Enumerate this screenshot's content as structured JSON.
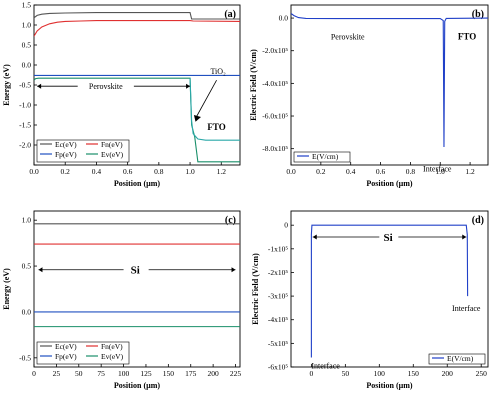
{
  "chart_data": [
    {
      "panel": "(a)",
      "type": "line",
      "xlabel": "Position (µm)",
      "ylabel": "Energy (eV)",
      "xlim": [
        0,
        1.32
      ],
      "ylim": [
        -2.5,
        1.5
      ],
      "xticks": [
        0.0,
        0.2,
        0.4,
        0.6,
        0.8,
        1.0,
        1.2
      ],
      "xtick_labels": [
        "0.0",
        "0.2",
        "0.4",
        "0.6",
        "0.8",
        "1.0",
        "1.2"
      ],
      "yticks": [
        -2.5,
        -2.0,
        -1.5,
        -1.0,
        -0.5,
        0.0,
        0.5,
        1.0,
        1.5
      ],
      "ytick_labels": [
        "",
        "-2.0",
        "-1.5",
        "-1.0",
        "-0.5",
        "0.0",
        "0.5",
        "1.0",
        "1.5"
      ],
      "legend": "bottom-left",
      "series": [
        {
          "name": "Ec(eV)",
          "color": "#555555",
          "x": [
            0,
            0.02,
            0.05,
            0.1,
            0.2,
            0.4,
            0.6,
            0.8,
            1.0,
            1.01,
            1.03,
            1.32
          ],
          "y": [
            1.18,
            1.24,
            1.27,
            1.29,
            1.3,
            1.31,
            1.31,
            1.31,
            1.31,
            1.15,
            1.15,
            1.15
          ]
        },
        {
          "name": "Fn(eV)",
          "color": "#e03030",
          "x": [
            0,
            0.02,
            0.05,
            0.1,
            0.15,
            0.2,
            0.3,
            0.4,
            0.6,
            0.8,
            1.0,
            1.02,
            1.32
          ],
          "y": [
            0.72,
            0.85,
            0.95,
            1.03,
            1.07,
            1.09,
            1.1,
            1.11,
            1.11,
            1.11,
            1.11,
            1.1,
            1.09
          ]
        },
        {
          "name": "Fp(eV)",
          "color": "#2050c0",
          "x": [
            0,
            1.32
          ],
          "y": [
            -0.26,
            -0.26
          ]
        },
        {
          "name": "Ev(eV)",
          "color": "#1a8f6a",
          "x": [
            0,
            0.01,
            0.03,
            0.1,
            0.3,
            0.6,
            1.0,
            1.01,
            1.03,
            1.05,
            1.32
          ],
          "y": [
            -0.38,
            -0.34,
            -0.33,
            -0.33,
            -0.33,
            -0.33,
            -0.33,
            -1.5,
            -1.8,
            -2.42,
            -2.42
          ]
        },
        {
          "name": "",
          "color": "#2aa8a8",
          "x": [
            1.0,
            1.01,
            1.02,
            1.05,
            1.1,
            1.2,
            1.32
          ],
          "y": [
            -0.33,
            -1.4,
            -1.72,
            -1.85,
            -1.88,
            -1.88,
            -1.88
          ]
        }
      ],
      "annotations": [
        {
          "text": "Perovskite",
          "x": 0.46,
          "y": -0.53
        },
        {
          "text": "TiO₂",
          "x": 1.18,
          "y": -0.22
        },
        {
          "text": "FTO",
          "x": 1.17,
          "y": -1.62
        }
      ]
    },
    {
      "panel": "(b)",
      "type": "line",
      "xlabel": "Position (µm)",
      "ylabel": "Electric Field (V/cm)",
      "xlim": [
        0,
        1.32
      ],
      "ylim": [
        -900000,
        80000
      ],
      "xticks": [
        0.0,
        0.2,
        0.4,
        0.6,
        0.8,
        1.0,
        1.2
      ],
      "xtick_labels": [
        "0.0",
        "0.2",
        "0.4",
        "0.6",
        "0.8",
        "1.0",
        "1.2"
      ],
      "yticks": [
        0,
        -200000,
        -400000,
        -600000,
        -800000
      ],
      "ytick_labels": [
        "0.0",
        "-2.0x10⁵",
        "-4.0x10⁵",
        "-6.0x10⁵",
        "-8.0x10⁵"
      ],
      "legend": "bottom-left",
      "series": [
        {
          "name": "E(V/cm)",
          "color": "#2040c8",
          "x": [
            0,
            0.02,
            0.05,
            0.1,
            0.3,
            0.6,
            0.9,
            1.0,
            1.02,
            1.025,
            1.03,
            1.04,
            1.32
          ],
          "y": [
            28000,
            15000,
            3000,
            -2000,
            -3000,
            -3000,
            -3000,
            -3000,
            -15000,
            -790000,
            -20000,
            -2000,
            0
          ]
        }
      ],
      "annotations": [
        {
          "text": "Perovskite",
          "x": 0.38,
          "y": -70000
        },
        {
          "text": "FTO",
          "x": 1.18,
          "y": -70000
        },
        {
          "text": "Interface",
          "x": 0.98,
          "y": -880000
        }
      ]
    },
    {
      "panel": "(c)",
      "type": "line",
      "xlabel": "Position (µm)",
      "ylabel": "Energy (eV)",
      "xlim": [
        0,
        230
      ],
      "ylim": [
        -0.6,
        1.1
      ],
      "xticks": [
        0,
        25,
        50,
        75,
        100,
        125,
        150,
        175,
        200,
        225
      ],
      "xtick_labels": [
        "0",
        "25",
        "50",
        "75",
        "100",
        "125",
        "150",
        "175",
        "200",
        "225"
      ],
      "yticks": [
        -0.5,
        0.0,
        0.5,
        1.0
      ],
      "ytick_labels": [
        "-0.5",
        "0.0",
        "0.5",
        "1.0"
      ],
      "legend": "bottom-left",
      "series": [
        {
          "name": "Ec(eV)",
          "color": "#555555",
          "x": [
            0,
            230
          ],
          "y": [
            0.96,
            0.96
          ]
        },
        {
          "name": "Fn(eV)",
          "color": "#e03030",
          "x": [
            0,
            230
          ],
          "y": [
            0.74,
            0.74
          ]
        },
        {
          "name": "Fp(eV)",
          "color": "#2050c0",
          "x": [
            0,
            230
          ],
          "y": [
            0.0,
            0.0
          ]
        },
        {
          "name": "Ev(eV)",
          "color": "#1a8f6a",
          "x": [
            0,
            230
          ],
          "y": [
            -0.16,
            -0.16
          ]
        }
      ],
      "annotations": [
        {
          "text": "Si",
          "x": 113,
          "y": 0.46
        }
      ]
    },
    {
      "panel": "(d)",
      "type": "line",
      "xlabel": "Position (µm)",
      "ylabel": "Electric Field (V/cm)",
      "xlim": [
        -30,
        260
      ],
      "ylim": [
        -600000,
        60000
      ],
      "xticks": [
        0,
        50,
        100,
        150,
        200,
        250
      ],
      "xtick_labels": [
        "0",
        "50",
        "100",
        "150",
        "200",
        "250"
      ],
      "yticks": [
        0,
        -100000,
        -200000,
        -300000,
        -400000,
        -500000,
        -600000
      ],
      "ytick_labels": [
        "0",
        "-1x10⁵",
        "-2x10⁵",
        "-3x10⁵",
        "-4x10⁵",
        "-5x10⁵",
        "-6x10⁵"
      ],
      "legend": "bottom-right",
      "series": [
        {
          "name": "E(V/cm)",
          "color": "#2040c8",
          "x": [
            0,
            0,
            0.8,
            228,
            229.5,
            230
          ],
          "y": [
            -560000,
            -40000,
            0,
            0,
            -40000,
            -300000
          ]
        }
      ],
      "annotations": [
        {
          "text": "Si",
          "x": 113,
          "y": -50000
        },
        {
          "text": "Interface",
          "x": 0,
          "y": -565000
        },
        {
          "text": "Interface",
          "x": 228,
          "y": -320000
        }
      ]
    }
  ]
}
